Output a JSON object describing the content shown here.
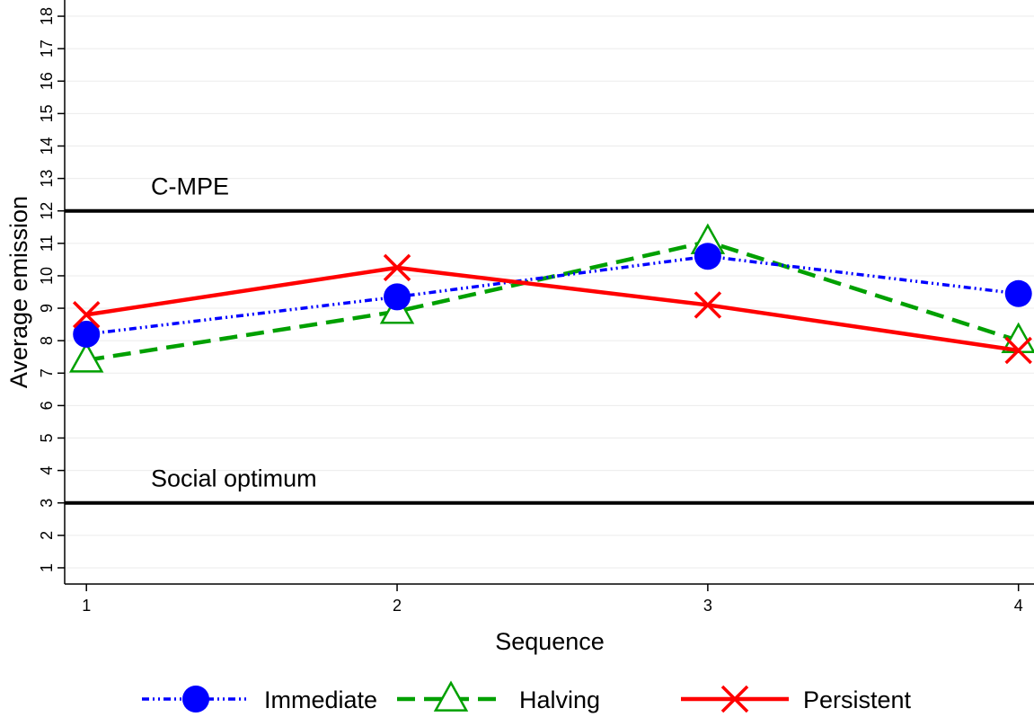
{
  "chart_data": {
    "type": "line",
    "xlabel": "Sequence",
    "ylabel": "Average emission",
    "x": [
      1,
      2,
      3,
      4
    ],
    "xlim": [
      0.93,
      4.05
    ],
    "ylim": [
      0.5,
      18.5
    ],
    "x_ticks": [
      "1",
      "2",
      "3",
      "4"
    ],
    "y_ticks": [
      "1",
      "2",
      "3",
      "4",
      "5",
      "6",
      "7",
      "8",
      "9",
      "10",
      "11",
      "12",
      "13",
      "14",
      "15",
      "16",
      "17",
      "18"
    ],
    "grid": "horizontal",
    "legend_position": "bottom",
    "reference_lines": [
      {
        "label": "C-MPE",
        "y": 12
      },
      {
        "label": "Social optimum",
        "y": 3
      }
    ],
    "series": [
      {
        "name": "Immediate",
        "values": [
          8.2,
          9.35,
          10.6,
          9.45
        ],
        "color": "#0000ff",
        "marker": "circle",
        "line_style": "dash-dot-dot"
      },
      {
        "name": "Halving",
        "values": [
          7.4,
          8.9,
          11.05,
          8.0
        ],
        "color": "#00a000",
        "marker": "triangle",
        "line_style": "dashed"
      },
      {
        "name": "Persistent",
        "values": [
          8.8,
          10.25,
          9.1,
          7.7
        ],
        "color": "#ff0000",
        "marker": "cross",
        "line_style": "solid"
      }
    ]
  }
}
